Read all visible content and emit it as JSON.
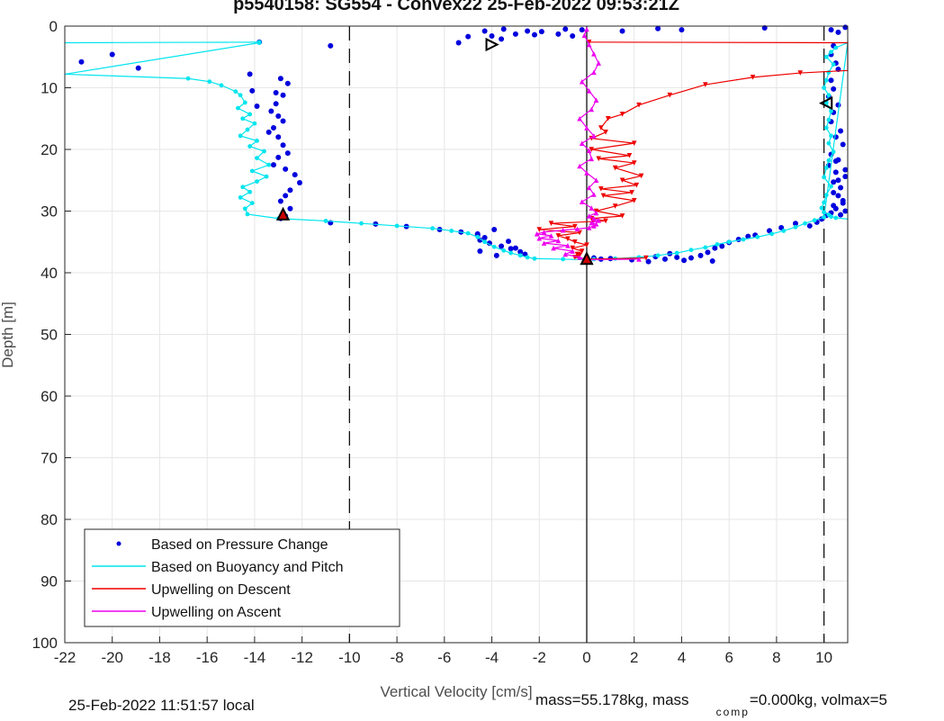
{
  "chart_data": {
    "type": "scatter",
    "title": "p5540158: SG554 - Convex22 25-Feb-2022 09:53:21Z",
    "xlabel": "Vertical Velocity [cm/s]",
    "ylabel": "Depth [m]",
    "xlim": [
      -22,
      11
    ],
    "ylim": [
      0,
      100
    ],
    "y_reversed": true,
    "grid": true,
    "x_ticks": [
      "-22",
      "-20",
      "-18",
      "-16",
      "-14",
      "-12",
      "-10",
      "-8",
      "-6",
      "-4",
      "-2",
      "0",
      "2",
      "4",
      "6",
      "8",
      "10"
    ],
    "y_ticks": [
      "0",
      "10",
      "20",
      "30",
      "40",
      "50",
      "60",
      "70",
      "80",
      "90",
      "100"
    ],
    "reference_lines": [
      {
        "x": -10,
        "style": "dashed"
      },
      {
        "x": 0,
        "style": "solid"
      },
      {
        "x": 10,
        "style": "dashed"
      }
    ],
    "legend_placement": "bottom-left",
    "series": [
      {
        "name": "Based on Pressure Change",
        "color": "#0000dd",
        "style": "dots",
        "x": [
          -13.8,
          -10.8,
          -21.3,
          -20,
          -18.9,
          -14.2,
          -14.1,
          -12.9,
          -12.6,
          -13.1,
          -12.8,
          -13.1,
          -13.9,
          -13.3,
          -13.0,
          -12.8,
          -13.2,
          -13.4,
          -13.0,
          -12.8,
          -12.6,
          -13.0,
          -13.2,
          -12.7,
          -12.3,
          -12.1,
          -12.5,
          -12.7,
          -12.9,
          -12.5,
          -12.7,
          -12.9,
          -10.8,
          -8.9,
          -7.6,
          -6.2,
          -5.3,
          -4.6,
          -4.5,
          -4.1,
          -3.6,
          -3.2,
          -2.8,
          -2.6,
          -4.3,
          -4.6,
          -3.9,
          -3.3,
          -3.0,
          -3.8,
          -4.5,
          -5.4,
          -5.0,
          -4.3,
          -4.0,
          -3.6,
          -3.0,
          -3.5,
          -2.5,
          -2.2,
          -1.9,
          -1.2,
          -0.9,
          -0.6,
          -0.2,
          1.5,
          3.0,
          4.0,
          7.5,
          10.3,
          10.6,
          10.9,
          10.4,
          10.3,
          10.5,
          10.6,
          10.3,
          10.4,
          10.2,
          10.6,
          10.4,
          10.3,
          10.7,
          10.5,
          10.8,
          10.3,
          10.6,
          10.2,
          10.5,
          10.9,
          10.4,
          10.7,
          10.6,
          10.8,
          10.4,
          10.9,
          10.3,
          10.7,
          10.5,
          10.8,
          10.4,
          10.6,
          10.9,
          10.5,
          10.1,
          9.9,
          9.7,
          9.4,
          8.8,
          8.2,
          7.7,
          7.1,
          6.8,
          6.4,
          6.0,
          5.7,
          5.4,
          5.1,
          4.8,
          4.4,
          4.1,
          3.8,
          3.5,
          3.3,
          2.9,
          2.6,
          1.9,
          5.3,
          1.0,
          0.6,
          0.3
        ],
        "y": [
          2.6,
          3.2,
          5.8,
          4.6,
          6.8,
          7.8,
          10.5,
          8.5,
          9.3,
          10.8,
          11.2,
          12.6,
          13.0,
          13.8,
          14.6,
          15.4,
          16.5,
          17.2,
          18.0,
          19.3,
          20.6,
          21.3,
          22.5,
          23.2,
          24.1,
          25.4,
          26.6,
          27.5,
          28.4,
          29.6,
          30.8,
          31.2,
          31.9,
          32.1,
          32.5,
          33.0,
          33.4,
          33.9,
          34.7,
          35.2,
          35.7,
          36.1,
          36.6,
          37.0,
          34.3,
          33.7,
          33.0,
          34.9,
          36.0,
          37.2,
          36.5,
          2.7,
          1.7,
          0.8,
          1.6,
          2.1,
          1.3,
          0.5,
          0.8,
          1.4,
          0.9,
          1.3,
          0.5,
          1.6,
          0.6,
          0.8,
          0.4,
          0.6,
          0.3,
          0.6,
          1.0,
          0.2,
          3.2,
          4.6,
          6.0,
          7.0,
          8.8,
          10.2,
          11.4,
          12.8,
          14.0,
          15.5,
          17.0,
          18.0,
          19.2,
          20.8,
          21.7,
          22.6,
          23.7,
          24.4,
          25.3,
          26.2,
          27.5,
          28.3,
          29.1,
          30.0,
          30.3,
          30.6,
          29.6,
          28.7,
          27.0,
          25.0,
          23.3,
          21.9,
          30.7,
          31.3,
          31.8,
          32.4,
          32.0,
          32.7,
          33.2,
          33.9,
          34.1,
          34.6,
          35.1,
          35.7,
          36.0,
          36.7,
          37.2,
          37.6,
          38.0,
          37.5,
          36.9,
          37.8,
          37.4,
          38.2,
          37.9,
          38.1,
          37.7,
          37.8,
          37.6
        ]
      },
      {
        "name": "Based on Buoyancy and Pitch",
        "color": "#00e5ee",
        "style": "line+dots",
        "x": [
          -22,
          -13.8,
          -13.8,
          -22,
          -16.8,
          -15.9,
          -15.4,
          -14.8,
          -14.6,
          -14.4,
          -14.7,
          -14.2,
          -14.5,
          -14.0,
          -14.3,
          -14.6,
          -13.9,
          -14.2,
          -13.6,
          -13.9,
          -13.4,
          -14.1,
          -13.5,
          -13.9,
          -14.5,
          -14.2,
          -14.6,
          -14.1,
          -14.4,
          -14.3,
          -13.0,
          -11.0,
          -9.5,
          -8.0,
          -6.5,
          -5.7,
          -5.0,
          -4.6,
          -4.3,
          -3.9,
          -3.5,
          -3.2,
          -2.8,
          -2.5,
          -2.2,
          -1.0,
          0.0,
          0.3,
          1.2,
          2.2,
          3.0,
          3.8,
          4.4,
          5.0,
          5.5,
          6.0,
          6.6,
          7.2,
          7.8,
          8.3,
          8.8,
          9.2,
          9.6,
          10.0,
          11,
          10.5,
          10.3,
          10.1,
          10.4,
          10.2,
          10.1,
          10.0,
          10.2,
          10.1,
          10.3,
          10.2,
          10.1,
          10.3,
          10.2,
          10.4,
          10.2,
          10.1,
          10.0,
          10.3,
          10.1,
          10.0,
          9.9,
          10.0,
          10.2,
          10.3,
          10.5,
          11
        ],
        "y": [
          2.7,
          2.6,
          2.7,
          7.8,
          8.5,
          9.0,
          9.6,
          10.6,
          11.2,
          12.4,
          13.3,
          14.3,
          15.0,
          15.8,
          16.8,
          17.8,
          18.6,
          19.5,
          20.3,
          21.4,
          22.5,
          23.5,
          24.4,
          25.2,
          26.1,
          26.9,
          27.8,
          28.7,
          29.6,
          30.5,
          31.2,
          31.6,
          32.0,
          32.4,
          32.8,
          33.2,
          33.6,
          34.2,
          35.0,
          35.8,
          36.4,
          36.8,
          37.2,
          37.5,
          37.7,
          37.8,
          37.9,
          37.8,
          37.7,
          37.5,
          37.2,
          36.8,
          36.3,
          35.9,
          35.4,
          35.0,
          34.6,
          34.2,
          33.7,
          33.2,
          32.6,
          32.0,
          31.5,
          31.0,
          2.7,
          3.5,
          4.2,
          5.0,
          6.2,
          7.5,
          8.8,
          10.0,
          11.2,
          12.4,
          13.8,
          15.2,
          16.5,
          17.8,
          19.0,
          20.4,
          21.8,
          23.0,
          24.5,
          26.0,
          27.4,
          28.6,
          29.5,
          30.2,
          30.6,
          30.9,
          31.1,
          31.3
        ]
      },
      {
        "name": "Upwelling on Descent",
        "color": "#ee0000",
        "style": "line+triangles",
        "x": [
          0.1,
          11,
          11,
          11,
          9.0,
          7.0,
          5.0,
          3.5,
          2.2,
          1.5,
          0.9,
          0.6,
          0.8,
          0.2,
          2.0,
          0.2,
          1.8,
          0.5,
          2.0,
          1.2,
          2.3,
          1.5,
          2.1,
          0.6,
          1.9,
          0.7,
          2.0,
          1.2,
          0.4,
          1.5,
          0.2,
          0.8,
          -1.5,
          -0.5,
          -2.0,
          -0.3,
          -1.2,
          -0.8,
          -0.5,
          0.0,
          -0.6,
          -0.2,
          -0.4,
          -0.3,
          -0.5,
          0.0,
          2.5
        ],
        "y": [
          2.6,
          2.7,
          2.5,
          7.2,
          7.6,
          8.3,
          9.5,
          11.2,
          12.8,
          14.3,
          15.0,
          16.5,
          17.2,
          18.2,
          19.0,
          20.0,
          21.0,
          21.5,
          22.2,
          23.0,
          24.3,
          25.0,
          25.8,
          26.4,
          27.0,
          27.5,
          28.3,
          29.2,
          30.0,
          30.8,
          31.2,
          31.6,
          32.0,
          32.5,
          33.0,
          33.5,
          34.0,
          34.5,
          35.0,
          35.5,
          36.0,
          36.5,
          37.0,
          37.2,
          37.5,
          37.8,
          37.6
        ]
      },
      {
        "name": "Upwelling on Ascent",
        "color": "#ee00ee",
        "style": "line+triangles",
        "x": [
          0.0,
          -0.1,
          0.1,
          0.3,
          0.5,
          0.3,
          -0.2,
          0.1,
          0.4,
          0.2,
          -0.3,
          0.0,
          0.3,
          -0.2,
          0.1,
          0.2,
          -0.3,
          0.0,
          0.4,
          0.1,
          0.3,
          -0.2,
          0.2,
          0.4,
          0.1,
          0.3,
          0.5,
          0.2,
          0.4,
          0.3,
          0.1,
          -0.4,
          -1.0,
          -1.8,
          -2.1,
          -1.5,
          -2.0,
          -1.2,
          -1.8,
          -0.8,
          -1.4,
          -0.6,
          -0.9,
          -0.3,
          0.0,
          2.2
        ],
        "y": [
          0.5,
          1.5,
          3.0,
          4.5,
          6.0,
          7.5,
          9.0,
          10.5,
          12.0,
          13.5,
          15.0,
          16.5,
          17.8,
          19.0,
          20.2,
          21.5,
          22.7,
          23.8,
          25.0,
          26.2,
          27.3,
          28.5,
          29.5,
          30.3,
          30.8,
          31.2,
          31.5,
          31.9,
          32.1,
          32.4,
          32.7,
          32.9,
          33.1,
          33.4,
          33.7,
          34.0,
          34.4,
          34.8,
          35.2,
          35.6,
          36.0,
          36.5,
          37.0,
          37.5,
          37.9,
          37.8
        ]
      }
    ],
    "markers": [
      {
        "shape": "triangle-right",
        "x": -4.0,
        "y": 3.0
      },
      {
        "shape": "triangle-left",
        "x": 10.1,
        "y": 12.5
      },
      {
        "shape": "triangle-up-filled",
        "x": -12.8,
        "y": 30.5
      },
      {
        "shape": "triangle-up-filled",
        "x": 0.0,
        "y": 37.7
      }
    ]
  },
  "footer": {
    "local_time": "25-Feb-2022 11:51:57 local",
    "mass_text": "mass=55.178kg, mass",
    "comp_sub": "comp",
    "volmax_text": "=0.000kg, volmax=5"
  }
}
